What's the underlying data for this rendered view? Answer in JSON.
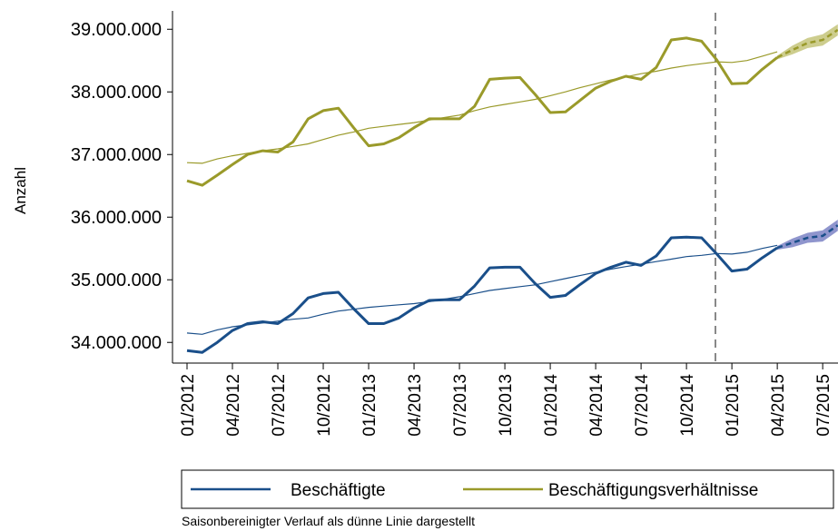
{
  "chart_data": {
    "type": "line",
    "y_label": "Anzahl",
    "note": "Saisonbereinigter Verlauf als dünne Linie dargestellt",
    "categories": [
      "01/2012",
      null,
      null,
      "04/2012",
      null,
      null,
      "07/2012",
      null,
      null,
      "10/2012",
      null,
      null,
      "01/2013",
      null,
      null,
      "04/2013",
      null,
      null,
      "07/2013",
      null,
      null,
      "10/2013",
      null,
      null,
      "01/2014",
      null,
      null,
      "04/2014",
      null,
      null,
      "07/2014",
      null,
      null,
      "10/2014",
      null,
      null,
      "01/2015",
      null,
      null,
      "04/2015",
      null,
      null,
      "07/2015",
      null
    ],
    "ylim": [
      33670000,
      39250000
    ],
    "yticks": [
      {
        "value": 34000000,
        "label": "34.000.000"
      },
      {
        "value": 35000000,
        "label": "35.000.000"
      },
      {
        "value": 36000000,
        "label": "36.000.000"
      },
      {
        "value": 37000000,
        "label": "37.000.000"
      },
      {
        "value": 38000000,
        "label": "38.000.000"
      },
      {
        "value": 39000000,
        "label": "39.000.000"
      }
    ],
    "series": [
      {
        "name": "Beschäftigte",
        "color": "#1a4f8a",
        "band_color": "#7b82c4",
        "values": [
          33870000,
          33840000,
          34000000,
          34190000,
          34300000,
          34330000,
          34300000,
          34460000,
          34710000,
          34780000,
          34800000,
          34540000,
          34300000,
          34300000,
          34390000,
          34550000,
          34670000,
          34680000,
          34680000,
          34900000,
          35190000,
          35200000,
          35200000,
          34940000,
          34720000,
          34750000,
          34930000,
          35100000,
          35200000,
          35280000,
          35230000,
          35380000,
          35670000,
          35680000,
          35670000,
          35410000,
          35140000,
          35170000,
          35350000,
          35510000,
          null,
          null,
          null,
          null
        ],
        "forecast": [
          null,
          null,
          null,
          null,
          null,
          null,
          null,
          null,
          null,
          null,
          null,
          null,
          null,
          null,
          null,
          null,
          null,
          null,
          null,
          null,
          null,
          null,
          null,
          null,
          null,
          null,
          null,
          null,
          null,
          null,
          null,
          null,
          null,
          null,
          null,
          null,
          null,
          null,
          null,
          35510000,
          35590000,
          35670000,
          35700000,
          35870000
        ],
        "lower": [
          null,
          null,
          null,
          null,
          null,
          null,
          null,
          null,
          null,
          null,
          null,
          null,
          null,
          null,
          null,
          null,
          null,
          null,
          null,
          null,
          null,
          null,
          null,
          null,
          null,
          null,
          null,
          null,
          null,
          null,
          null,
          null,
          null,
          null,
          null,
          null,
          null,
          null,
          null,
          35480000,
          35520000,
          35590000,
          35610000,
          35780000
        ],
        "upper": [
          null,
          null,
          null,
          null,
          null,
          null,
          null,
          null,
          null,
          null,
          null,
          null,
          null,
          null,
          null,
          null,
          null,
          null,
          null,
          null,
          null,
          null,
          null,
          null,
          null,
          null,
          null,
          null,
          null,
          null,
          null,
          null,
          null,
          null,
          null,
          null,
          null,
          null,
          null,
          35540000,
          35660000,
          35750000,
          35790000,
          35960000
        ],
        "trend": [
          34150000,
          34130000,
          34200000,
          34250000,
          34280000,
          34310000,
          34340000,
          34370000,
          34390000,
          34450000,
          34500000,
          34530000,
          34560000,
          34580000,
          34600000,
          34620000,
          34650000,
          34690000,
          34730000,
          34780000,
          34830000,
          34860000,
          34890000,
          34920000,
          34970000,
          35020000,
          35070000,
          35120000,
          35170000,
          35210000,
          35250000,
          35290000,
          35330000,
          35370000,
          35390000,
          35420000,
          35410000,
          35440000,
          35500000,
          35550000,
          null,
          null,
          null,
          null
        ]
      },
      {
        "name": "Beschäftigungsverhältnisse",
        "color": "#9a9a2a",
        "band_color": "#c4c47a",
        "values": [
          36580000,
          36510000,
          36670000,
          36840000,
          37000000,
          37060000,
          37040000,
          37200000,
          37570000,
          37700000,
          37740000,
          37430000,
          37140000,
          37170000,
          37270000,
          37430000,
          37570000,
          37570000,
          37570000,
          37770000,
          38200000,
          38220000,
          38230000,
          37960000,
          37670000,
          37680000,
          37870000,
          38060000,
          38170000,
          38250000,
          38200000,
          38390000,
          38830000,
          38860000,
          38810000,
          38510000,
          38130000,
          38140000,
          38360000,
          38550000,
          null,
          null,
          null,
          null
        ],
        "forecast": [
          null,
          null,
          null,
          null,
          null,
          null,
          null,
          null,
          null,
          null,
          null,
          null,
          null,
          null,
          null,
          null,
          null,
          null,
          null,
          null,
          null,
          null,
          null,
          null,
          null,
          null,
          null,
          null,
          null,
          null,
          null,
          null,
          null,
          null,
          null,
          null,
          null,
          null,
          null,
          38550000,
          38670000,
          38780000,
          38830000,
          38990000
        ],
        "lower": [
          null,
          null,
          null,
          null,
          null,
          null,
          null,
          null,
          null,
          null,
          null,
          null,
          null,
          null,
          null,
          null,
          null,
          null,
          null,
          null,
          null,
          null,
          null,
          null,
          null,
          null,
          null,
          null,
          null,
          null,
          null,
          null,
          null,
          null,
          null,
          null,
          null,
          null,
          null,
          38520000,
          38600000,
          38700000,
          38740000,
          38900000
        ],
        "upper": [
          null,
          null,
          null,
          null,
          null,
          null,
          null,
          null,
          null,
          null,
          null,
          null,
          null,
          null,
          null,
          null,
          null,
          null,
          null,
          null,
          null,
          null,
          null,
          null,
          null,
          null,
          null,
          null,
          null,
          null,
          null,
          null,
          null,
          null,
          null,
          null,
          null,
          null,
          null,
          38580000,
          38740000,
          38860000,
          38920000,
          39080000
        ],
        "trend": [
          36870000,
          36860000,
          36930000,
          36980000,
          37020000,
          37060000,
          37090000,
          37130000,
          37170000,
          37240000,
          37310000,
          37360000,
          37420000,
          37450000,
          37480000,
          37510000,
          37550000,
          37590000,
          37630000,
          37700000,
          37760000,
          37800000,
          37840000,
          37880000,
          37940000,
          38000000,
          38070000,
          38130000,
          38190000,
          38240000,
          38290000,
          38330000,
          38380000,
          38420000,
          38450000,
          38480000,
          38470000,
          38500000,
          38570000,
          38640000,
          null,
          null,
          null,
          null
        ]
      }
    ]
  }
}
